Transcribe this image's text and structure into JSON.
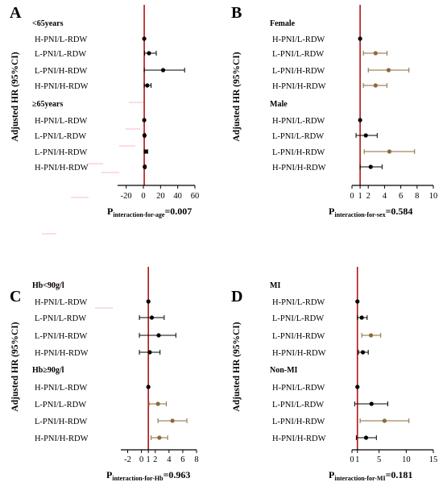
{
  "figure": {
    "ylabel": "Adjusted HR (95%CI)",
    "colors": {
      "refline": "#b01414",
      "ci_black": "#000000",
      "ci_brown": "#8a6a3a",
      "point_black": "#000000",
      "point_brown": "#8a6a3a",
      "pink_artifact": "#f7c8dc"
    }
  },
  "chart_data": [
    {
      "type": "forest",
      "letter": "A",
      "ylabel": "Adjusted HR (95%CI)",
      "xlim": [
        -30,
        60
      ],
      "ticks": [
        -20,
        0,
        20,
        40,
        60
      ],
      "ref": 1,
      "p_prefix": "P",
      "p_sub": "interaction-for-age",
      "p_value": "=0.007",
      "groups": [
        {
          "label": "<65years",
          "rows": [
            {
              "label": "H-PNI/L-RDW",
              "hr": 1,
              "lo": 1,
              "hi": 1,
              "color": "black"
            },
            {
              "label": "L-PNI/L-RDW",
              "hr": 6.5,
              "lo": 1.5,
              "hi": 15,
              "color": "black"
            },
            {
              "label": "L-PNI/H-RDW",
              "hr": 23,
              "lo": 1,
              "hi": 48,
              "color": "black"
            },
            {
              "label": "H-PNI/H-RDW",
              "hr": 4.5,
              "lo": 1,
              "hi": 9,
              "color": "black"
            }
          ]
        },
        {
          "label": "≥65years",
          "rows": [
            {
              "label": "H-PNI/L-RDW",
              "hr": 1,
              "lo": 1,
              "hi": 1,
              "color": "black"
            },
            {
              "label": "L-PNI/L-RDW",
              "hr": 1.3,
              "lo": 0.6,
              "hi": 2.2,
              "color": "black"
            },
            {
              "label": "L-PNI/H-RDW",
              "hr": 2.8,
              "lo": 1,
              "hi": 5,
              "color": "black"
            },
            {
              "label": "H-PNI/H-RDW",
              "hr": 1.6,
              "lo": 0.9,
              "hi": 2.6,
              "color": "black"
            }
          ]
        }
      ]
    },
    {
      "type": "forest",
      "letter": "B",
      "ylabel": "Adjusted HR (95%CI)",
      "xlim": [
        0,
        10
      ],
      "ticks": [
        0,
        1,
        2,
        4,
        6,
        8,
        10
      ],
      "ref": 1,
      "p_prefix": "P",
      "p_sub": "interaction-for-sex",
      "p_value": "=0.584",
      "groups": [
        {
          "label": "Female",
          "rows": [
            {
              "label": "H-PNI/L-RDW",
              "hr": 1,
              "lo": 1,
              "hi": 1,
              "color": "black"
            },
            {
              "label": "L-PNI/L-RDW",
              "hr": 2.9,
              "lo": 1.4,
              "hi": 4.3,
              "color": "brown"
            },
            {
              "label": "L-PNI/H-RDW",
              "hr": 4.5,
              "lo": 2,
              "hi": 7,
              "color": "brown"
            },
            {
              "label": "H-PNI/H-RDW",
              "hr": 2.9,
              "lo": 1.4,
              "hi": 4.3,
              "color": "brown"
            }
          ]
        },
        {
          "label": "Male",
          "rows": [
            {
              "label": "H-PNI/L-RDW",
              "hr": 1,
              "lo": 1,
              "hi": 1,
              "color": "black"
            },
            {
              "label": "L-PNI/L-RDW",
              "hr": 1.7,
              "lo": 0.5,
              "hi": 3.1,
              "color": "black"
            },
            {
              "label": "L-PNI/H-RDW",
              "hr": 4.6,
              "lo": 1.5,
              "hi": 7.7,
              "color": "brown"
            },
            {
              "label": "H-PNI/H-RDW",
              "hr": 2.3,
              "lo": 1,
              "hi": 3.7,
              "color": "black"
            }
          ]
        }
      ]
    },
    {
      "type": "forest",
      "letter": "C",
      "ylabel": "Adjusted HR (95%CI)",
      "xlim": [
        -3,
        8
      ],
      "ticks": [
        -2,
        0,
        1,
        2,
        4,
        6,
        8
      ],
      "ref": 1,
      "p_prefix": "P",
      "p_sub": "interaction-for-Hb",
      "p_value": "=0.963",
      "groups": [
        {
          "label": "Hb<90g/l",
          "rows": [
            {
              "label": "H-PNI/L-RDW",
              "hr": 1,
              "lo": 1,
              "hi": 1,
              "color": "black"
            },
            {
              "label": "L-PNI/L-RDW",
              "hr": 1.5,
              "lo": -0.3,
              "hi": 3.3,
              "color": "black"
            },
            {
              "label": "L-PNI/H-RDW",
              "hr": 2.5,
              "lo": -0.3,
              "hi": 5,
              "color": "black"
            },
            {
              "label": "H-PNI/H-RDW",
              "hr": 1.2,
              "lo": -0.3,
              "hi": 2.7,
              "color": "black"
            }
          ]
        },
        {
          "label": "Hb≥90g/l",
          "rows": [
            {
              "label": "H-PNI/L-RDW",
              "hr": 1,
              "lo": 1,
              "hi": 1,
              "color": "black"
            },
            {
              "label": "L-PNI/L-RDW",
              "hr": 2.4,
              "lo": 1.1,
              "hi": 3.6,
              "color": "brown"
            },
            {
              "label": "L-PNI/H-RDW",
              "hr": 4.5,
              "lo": 2.4,
              "hi": 6.6,
              "color": "brown"
            },
            {
              "label": "H-PNI/H-RDW",
              "hr": 2.6,
              "lo": 1.4,
              "hi": 3.8,
              "color": "brown"
            }
          ]
        }
      ]
    },
    {
      "type": "forest",
      "letter": "D",
      "ylabel": "Adjusted HR (95%CI)",
      "xlim": [
        0,
        15
      ],
      "ticks": [
        0,
        1,
        5,
        10,
        15
      ],
      "ref": 1,
      "p_prefix": "P",
      "p_sub": "interaction-for-MI",
      "p_value": "=0.181",
      "groups": [
        {
          "label": "MI",
          "rows": [
            {
              "label": "H-PNI/L-RDW",
              "hr": 1,
              "lo": 1,
              "hi": 1,
              "color": "black"
            },
            {
              "label": "L-PNI/L-RDW",
              "hr": 1.8,
              "lo": 1,
              "hi": 2.8,
              "color": "black"
            },
            {
              "label": "L-PNI/H-RDW",
              "hr": 3.5,
              "lo": 1.8,
              "hi": 5.3,
              "color": "brown"
            },
            {
              "label": "H-PNI/H-RDW",
              "hr": 2,
              "lo": 1.2,
              "hi": 3,
              "color": "black"
            }
          ]
        },
        {
          "label": "Non-MI",
          "rows": [
            {
              "label": "H-PNI/L-RDW",
              "hr": 1,
              "lo": 1,
              "hi": 1,
              "color": "black"
            },
            {
              "label": "L-PNI/L-RDW",
              "hr": 3.6,
              "lo": 0.5,
              "hi": 6.6,
              "color": "black"
            },
            {
              "label": "L-PNI/H-RDW",
              "hr": 6,
              "lo": 1.5,
              "hi": 10.5,
              "color": "brown"
            },
            {
              "label": "H-PNI/H-RDW",
              "hr": 2.6,
              "lo": 0.8,
              "hi": 4.5,
              "color": "black"
            }
          ]
        }
      ]
    }
  ]
}
